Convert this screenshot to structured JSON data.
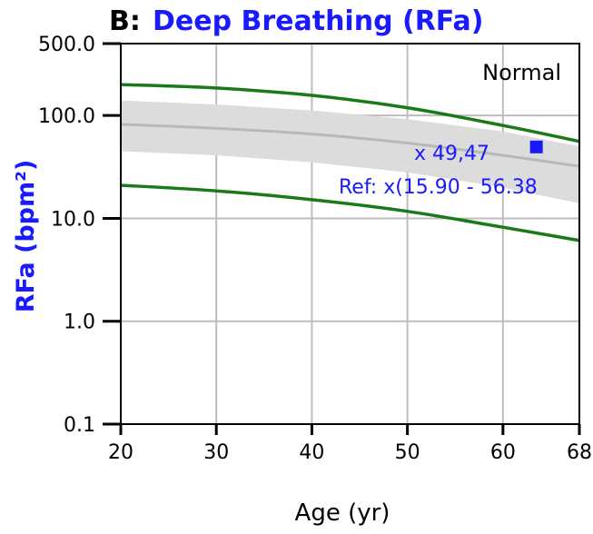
{
  "chart_data": {
    "type": "line",
    "title_prefix": "B:",
    "title": "Deep Breathing (RFa)",
    "xlabel": "Age (yr)",
    "ylabel": "RFa (bpm²)",
    "xlim": [
      20,
      68
    ],
    "ylim": [
      0.1,
      500
    ],
    "yscale": "log",
    "x_ticks": [
      20,
      30,
      40,
      50,
      60,
      68
    ],
    "y_ticks": [
      {
        "value": 0.1,
        "label": "0.1"
      },
      {
        "value": 1,
        "label": "1.0"
      },
      {
        "value": 10,
        "label": "10.0"
      },
      {
        "value": 100,
        "label": "100.0"
      },
      {
        "value": 500,
        "label": "500.0"
      }
    ],
    "grid": true,
    "reference_band": {
      "x": [
        20,
        30,
        40,
        50,
        60,
        68
      ],
      "lower": [
        45,
        41,
        35,
        28,
        20,
        14
      ],
      "upper": [
        140,
        128,
        112,
        92,
        70,
        50
      ],
      "median": [
        82,
        75,
        66,
        54,
        41,
        32
      ]
    },
    "limit_lines": {
      "x": [
        20,
        30,
        40,
        50,
        60,
        68
      ],
      "upper": [
        200,
        185,
        157,
        119,
        80,
        56
      ],
      "lower": [
        21,
        18.5,
        15.2,
        11.7,
        8.2,
        6.1
      ]
    },
    "patient_point": {
      "x": 63.5,
      "y": 49.47
    },
    "annotations": {
      "status": "Normal",
      "value": "x 49,47",
      "reference": "Ref: x(15.90 - 56.38"
    },
    "colors": {
      "band": "#dcdcdc",
      "median": "#b8b8b8",
      "limits": "#1a7a1a",
      "point": "#1a1aff",
      "grid": "#bdbdbd",
      "title": "#1a1aff"
    }
  }
}
